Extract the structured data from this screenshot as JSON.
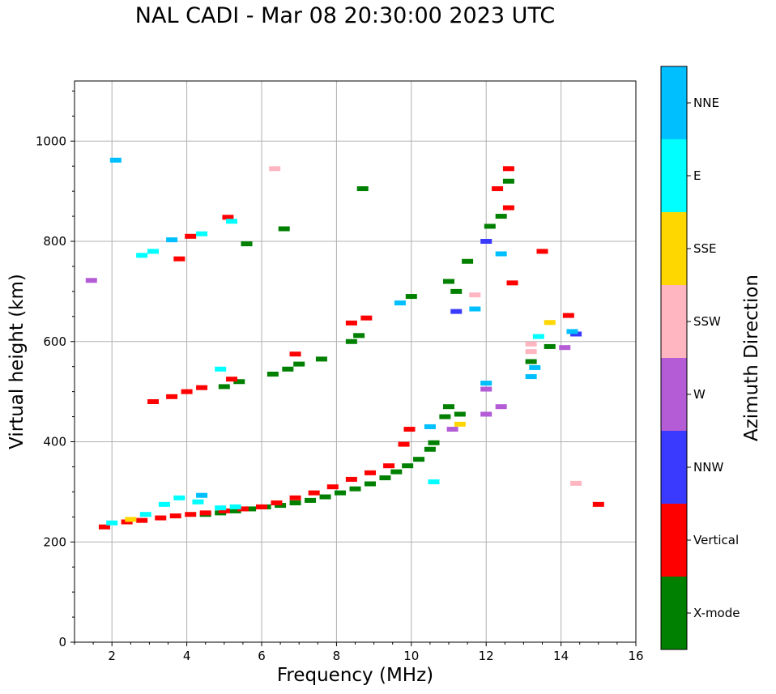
{
  "chart_data": {
    "type": "scatter",
    "title": "NAL CADI - Mar 08 20:30:00 2023 UTC",
    "xlabel": "Frequency (MHz)",
    "ylabel": "Virtual height (km)",
    "xlim": [
      1,
      16
    ],
    "ylim": [
      0,
      1120
    ],
    "xticks": [
      2,
      4,
      6,
      8,
      10,
      12,
      14,
      16
    ],
    "yticks": [
      0,
      200,
      400,
      600,
      800,
      1000
    ],
    "grid": true,
    "colorbar": {
      "label": "Azimuth Direction",
      "categories": [
        {
          "name": "X-mode",
          "color": "#008000"
        },
        {
          "name": "Vertical",
          "color": "#ff0000"
        },
        {
          "name": "NNW",
          "color": "#3a3aff"
        },
        {
          "name": "W",
          "color": "#b45cd6"
        },
        {
          "name": "SSW",
          "color": "#ffb6c1"
        },
        {
          "name": "SSE",
          "color": "#ffd700"
        },
        {
          "name": "E",
          "color": "#00ffff"
        },
        {
          "name": "NNE",
          "color": "#00bfff"
        }
      ]
    },
    "series": [
      {
        "name": "X-mode",
        "points": [
          [
            4.5,
            255
          ],
          [
            4.9,
            258
          ],
          [
            5.3,
            262
          ],
          [
            5.7,
            266
          ],
          [
            6.1,
            270
          ],
          [
            6.5,
            273
          ],
          [
            6.9,
            278
          ],
          [
            7.3,
            283
          ],
          [
            7.7,
            290
          ],
          [
            8.1,
            298
          ],
          [
            8.5,
            306
          ],
          [
            8.9,
            316
          ],
          [
            9.3,
            328
          ],
          [
            9.6,
            340
          ],
          [
            9.9,
            352
          ],
          [
            10.2,
            365
          ],
          [
            10.5,
            385
          ],
          [
            10.6,
            398
          ],
          [
            5.0,
            510
          ],
          [
            5.4,
            520
          ],
          [
            6.3,
            535
          ],
          [
            6.7,
            545
          ],
          [
            7.0,
            555
          ],
          [
            7.6,
            565
          ],
          [
            8.4,
            600
          ],
          [
            8.6,
            612
          ],
          [
            10.0,
            690
          ],
          [
            10.9,
            450
          ],
          [
            11.0,
            470
          ],
          [
            11.3,
            455
          ],
          [
            11.0,
            720
          ],
          [
            11.2,
            700
          ],
          [
            11.5,
            760
          ],
          [
            12.1,
            830
          ],
          [
            12.4,
            850
          ],
          [
            12.6,
            920
          ],
          [
            13.2,
            560
          ],
          [
            13.7,
            590
          ],
          [
            8.7,
            905
          ],
          [
            6.6,
            825
          ],
          [
            5.6,
            795
          ]
        ]
      },
      {
        "name": "Vertical",
        "points": [
          [
            1.8,
            230
          ],
          [
            2.4,
            240
          ],
          [
            2.8,
            243
          ],
          [
            3.3,
            248
          ],
          [
            3.7,
            252
          ],
          [
            4.1,
            255
          ],
          [
            4.5,
            258
          ],
          [
            5.0,
            262
          ],
          [
            5.5,
            266
          ],
          [
            6.0,
            270
          ],
          [
            6.4,
            278
          ],
          [
            6.9,
            288
          ],
          [
            7.4,
            298
          ],
          [
            7.9,
            310
          ],
          [
            8.4,
            325
          ],
          [
            8.9,
            338
          ],
          [
            9.4,
            352
          ],
          [
            9.8,
            395
          ],
          [
            9.95,
            425
          ],
          [
            3.1,
            480
          ],
          [
            3.6,
            490
          ],
          [
            4.0,
            500
          ],
          [
            4.4,
            508
          ],
          [
            5.2,
            525
          ],
          [
            6.9,
            575
          ],
          [
            8.4,
            637
          ],
          [
            8.8,
            647
          ],
          [
            3.8,
            765
          ],
          [
            4.1,
            810
          ],
          [
            5.1,
            848
          ],
          [
            12.3,
            905
          ],
          [
            12.6,
            945
          ],
          [
            12.6,
            867
          ],
          [
            12.7,
            717
          ],
          [
            13.5,
            780
          ],
          [
            14.2,
            652
          ],
          [
            15.0,
            275
          ]
        ]
      },
      {
        "name": "NNW",
        "points": [
          [
            14.4,
            615
          ],
          [
            11.2,
            660
          ],
          [
            12.0,
            800
          ]
        ]
      },
      {
        "name": "W",
        "points": [
          [
            12.0,
            505
          ],
          [
            12.4,
            470
          ],
          [
            12.0,
            455
          ],
          [
            11.1,
            425
          ],
          [
            14.1,
            588
          ],
          [
            1.45,
            722
          ]
        ]
      },
      {
        "name": "SSW",
        "points": [
          [
            13.2,
            595
          ],
          [
            13.2,
            580
          ],
          [
            14.4,
            317
          ],
          [
            6.35,
            945
          ],
          [
            11.7,
            693
          ]
        ]
      },
      {
        "name": "SSE",
        "points": [
          [
            2.5,
            245
          ],
          [
            11.3,
            435
          ],
          [
            13.7,
            638
          ]
        ]
      },
      {
        "name": "E",
        "points": [
          [
            2.0,
            238
          ],
          [
            2.9,
            255
          ],
          [
            3.4,
            275
          ],
          [
            3.8,
            288
          ],
          [
            4.3,
            280
          ],
          [
            4.9,
            268
          ],
          [
            5.3,
            270
          ],
          [
            4.4,
            815
          ],
          [
            5.2,
            840
          ],
          [
            2.8,
            772
          ],
          [
            3.1,
            780
          ],
          [
            4.9,
            545
          ],
          [
            13.4,
            610
          ],
          [
            10.6,
            320
          ]
        ]
      },
      {
        "name": "NNE",
        "points": [
          [
            2.1,
            962
          ],
          [
            3.6,
            803
          ],
          [
            4.4,
            293
          ],
          [
            10.5,
            430
          ],
          [
            11.7,
            665
          ],
          [
            12.4,
            775
          ],
          [
            12.0,
            517
          ],
          [
            13.3,
            548
          ],
          [
            14.3,
            620
          ],
          [
            13.2,
            530
          ],
          [
            9.7,
            677
          ]
        ]
      }
    ]
  }
}
